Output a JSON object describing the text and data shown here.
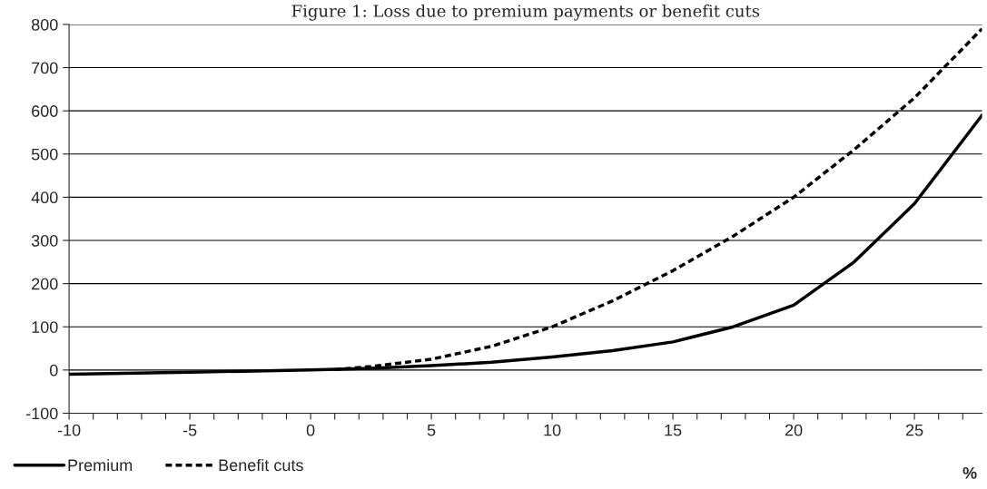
{
  "chart_data": {
    "type": "line",
    "title": "Figure 1: Loss due to premium payments or benefit cuts",
    "xlabel": "%",
    "series": [
      {
        "name": "Premium",
        "color": "#000000",
        "line_style": "solid",
        "x": [
          -10,
          -5,
          0,
          2.5,
          5,
          7.5,
          10,
          12.5,
          15,
          17.5,
          20,
          22.5,
          25,
          27.8
        ],
        "values": [
          -10,
          -5,
          0,
          4,
          10,
          18,
          30,
          45,
          65,
          100,
          150,
          250,
          385,
          590
        ]
      },
      {
        "name": "Benefit cuts",
        "color": "#000000",
        "line_style": "dashed",
        "x": [
          1,
          2.5,
          5,
          7.5,
          10,
          12.5,
          15,
          17.5,
          20,
          22.5,
          25,
          27.8
        ],
        "values": [
          1,
          8,
          25,
          55,
          100,
          160,
          230,
          310,
          400,
          510,
          630,
          790
        ]
      }
    ],
    "xlim": [
      -10,
      27.8
    ],
    "ylim": [
      -100,
      800
    ],
    "xticks": [
      -10,
      {
        "value": -9,
        "label": null
      },
      {
        "value": -8,
        "label": null
      },
      {
        "value": -7,
        "label": null
      },
      {
        "value": -6,
        "label": null
      },
      -5,
      {
        "value": -4,
        "label": null
      },
      {
        "value": -3,
        "label": null
      },
      {
        "value": -2,
        "label": null
      },
      {
        "value": -1,
        "label": null
      },
      0,
      {
        "value": 1,
        "label": null
      },
      {
        "value": 2,
        "label": null
      },
      {
        "value": 3,
        "label": null
      },
      {
        "value": 4,
        "label": null
      },
      5,
      {
        "value": 6,
        "label": null
      },
      {
        "value": 7,
        "label": null
      },
      {
        "value": 8,
        "label": null
      },
      {
        "value": 9,
        "label": null
      },
      10,
      {
        "value": 11,
        "label": null
      },
      {
        "value": 12,
        "label": null
      },
      {
        "value": 13,
        "label": null
      },
      {
        "value": 14,
        "label": null
      },
      15,
      {
        "value": 16,
        "label": null
      },
      {
        "value": 17,
        "label": null
      },
      {
        "value": 18,
        "label": null
      },
      {
        "value": 19,
        "label": null
      },
      20,
      {
        "value": 21,
        "label": null
      },
      {
        "value": 22,
        "label": null
      },
      {
        "value": 23,
        "label": null
      },
      {
        "value": 24,
        "label": null
      },
      25,
      {
        "value": 26,
        "label": null
      },
      {
        "value": 27,
        "label": null
      }
    ],
    "yticks": [
      -100,
      0,
      100,
      200,
      300,
      400,
      500,
      600,
      700,
      800
    ],
    "grid": "y",
    "legend": "bottom left"
  }
}
